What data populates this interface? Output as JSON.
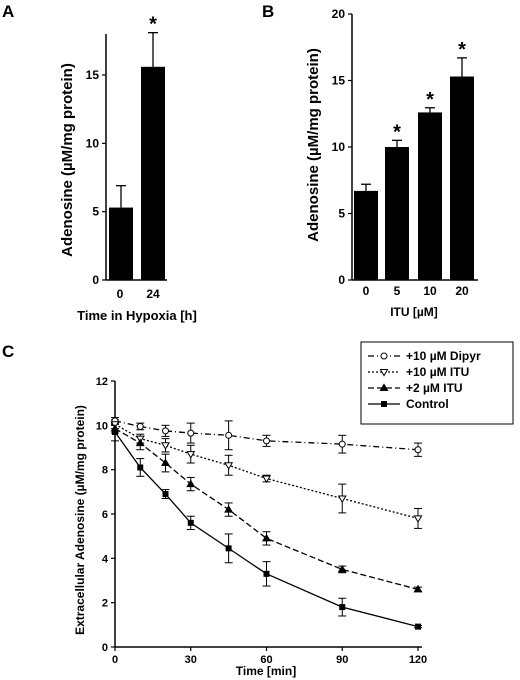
{
  "chart_data": [
    {
      "panel": "A",
      "type": "bar",
      "categories": [
        "0",
        "24"
      ],
      "values": [
        5.3,
        15.6
      ],
      "errors": [
        1.6,
        2.5
      ],
      "significance": [
        "",
        "*"
      ],
      "xlabel": "Time in Hypoxia [h]",
      "ylabel": "Adenosine (µM/mg protein)",
      "ylim": [
        0,
        18
      ],
      "yticks": [
        0,
        5,
        10,
        15
      ]
    },
    {
      "panel": "B",
      "type": "bar",
      "categories": [
        "0",
        "5",
        "10",
        "20"
      ],
      "values": [
        6.7,
        10.0,
        12.6,
        15.3
      ],
      "errors": [
        0.5,
        0.5,
        0.35,
        1.4
      ],
      "significance": [
        "",
        "*",
        "*",
        "*"
      ],
      "xlabel": "ITU [µM]",
      "ylabel": "Adenosine (µM/mg protein)",
      "ylim": [
        0,
        20
      ],
      "yticks": [
        0,
        5,
        10,
        15,
        20
      ]
    },
    {
      "panel": "C",
      "type": "line",
      "x": [
        0,
        10,
        20,
        30,
        45,
        60,
        90,
        120
      ],
      "xlabel": "Time [min]",
      "ylabel": "Extracellular Adenosine  (µM/mg protein)",
      "xlim": [
        0,
        120
      ],
      "ylim": [
        0,
        12
      ],
      "xticks": [
        0,
        30,
        60,
        90,
        120
      ],
      "yticks": [
        0,
        2,
        4,
        6,
        8,
        10,
        12
      ],
      "legend_position": "top-right",
      "series": [
        {
          "name": "+10 µM Dipyr",
          "marker": "circle-open",
          "dash": "6,3,1,3",
          "values": [
            10.2,
            9.95,
            9.75,
            9.65,
            9.55,
            9.3,
            9.15,
            8.9
          ],
          "errors": [
            0.15,
            0.15,
            0.25,
            0.45,
            0.65,
            0.25,
            0.4,
            0.3
          ]
        },
        {
          "name": "+10 µM ITU",
          "marker": "triangle-down-open",
          "dash": "2,2",
          "values": [
            10.05,
            9.4,
            9.1,
            8.7,
            8.2,
            7.6,
            6.7,
            5.8
          ],
          "errors": [
            0.2,
            0.2,
            0.3,
            0.4,
            0.45,
            0.15,
            0.65,
            0.45
          ]
        },
        {
          "name": "+2 µM ITU",
          "marker": "triangle-up-filled",
          "dash": "6,3",
          "values": [
            9.85,
            9.2,
            8.3,
            7.35,
            6.2,
            4.9,
            3.5,
            2.6
          ],
          "errors": [
            0.2,
            0.3,
            0.4,
            0.3,
            0.3,
            0.3,
            0.15,
            0.1
          ]
        },
        {
          "name": "Control",
          "marker": "square-filled",
          "dash": "",
          "values": [
            9.7,
            8.1,
            6.9,
            5.6,
            4.45,
            3.3,
            1.8,
            0.92
          ],
          "errors": [
            0.4,
            0.4,
            0.2,
            0.3,
            0.65,
            0.55,
            0.4,
            0.05
          ]
        }
      ]
    }
  ],
  "panel_labels": {
    "a": "A",
    "b": "B",
    "c": "C"
  }
}
